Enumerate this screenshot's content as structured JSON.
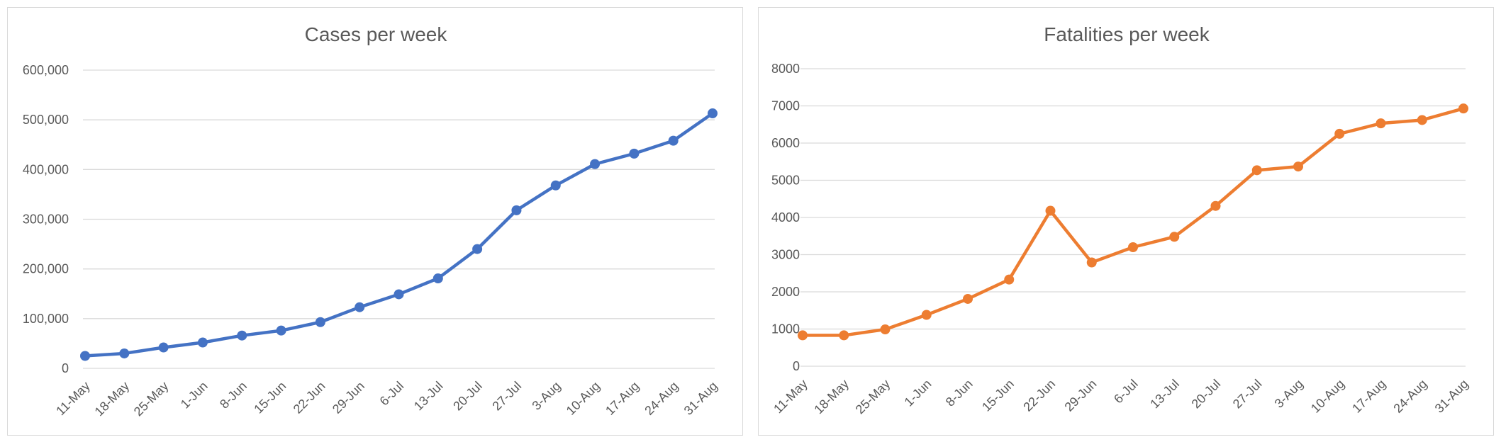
{
  "chart_data": [
    {
      "type": "line",
      "title": "Cases per week",
      "xlabel": "",
      "ylabel": "",
      "categories": [
        "11-May",
        "18-May",
        "25-May",
        "1-Jun",
        "8-Jun",
        "15-Jun",
        "22-Jun",
        "29-Jun",
        "6-Jul",
        "13-Jul",
        "20-Jul",
        "27-Jul",
        "3-Aug",
        "10-Aug",
        "17-Aug",
        "24-Aug",
        "31-Aug"
      ],
      "values": [
        25000,
        30000,
        42000,
        52000,
        66000,
        76000,
        93000,
        123000,
        149000,
        181000,
        240000,
        318000,
        368000,
        411000,
        432000,
        458000,
        513000
      ],
      "ylim": [
        0,
        600000
      ],
      "yticks": [
        0,
        100000,
        200000,
        300000,
        400000,
        500000,
        600000
      ],
      "ytick_labels": [
        "0",
        "100,000",
        "200,000",
        "300,000",
        "400,000",
        "500,000",
        "600,000"
      ],
      "color": "#4472c4",
      "grid": true
    },
    {
      "type": "line",
      "title": "Fatalities per week",
      "xlabel": "",
      "ylabel": "",
      "categories": [
        "11-May",
        "18-May",
        "25-May",
        "1-Jun",
        "8-Jun",
        "15-Jun",
        "22-Jun",
        "29-Jun",
        "6-Jul",
        "13-Jul",
        "20-Jul",
        "27-Jul",
        "3-Aug",
        "10-Aug",
        "17-Aug",
        "24-Aug",
        "31-Aug"
      ],
      "values": [
        830,
        830,
        990,
        1380,
        1810,
        2330,
        4180,
        2790,
        3200,
        3480,
        4310,
        5270,
        5370,
        6250,
        6530,
        6620,
        6930
      ],
      "ylim": [
        0,
        8000
      ],
      "yticks": [
        0,
        1000,
        2000,
        3000,
        4000,
        5000,
        6000,
        7000,
        8000
      ],
      "ytick_labels": [
        "0",
        "1000",
        "2000",
        "3000",
        "4000",
        "5000",
        "6000",
        "7000",
        "8000"
      ],
      "color": "#ed7d31",
      "grid": true
    }
  ]
}
